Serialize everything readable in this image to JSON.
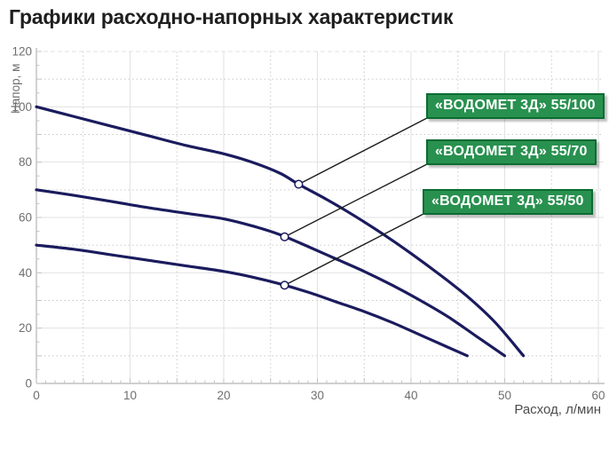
{
  "page": {
    "title": "Графики расходно-напорных характеристик"
  },
  "chart_data": {
    "type": "line",
    "title": "Графики расходно-напорных характеристик",
    "xlabel": "Расход, л/мин",
    "ylabel": "Напор, м",
    "xlim": [
      0,
      60
    ],
    "ylim": [
      0,
      120
    ],
    "x_major_ticks": [
      0,
      10,
      20,
      30,
      40,
      50,
      60
    ],
    "x_minor_step": 5,
    "y_major_ticks": [
      0,
      20,
      40,
      60,
      80,
      100,
      120
    ],
    "y_minor_step": 10,
    "grid": true,
    "legend_position": "callout-boxes-top-right",
    "annotation_box": {
      "bg": "#28914f",
      "border": "#0b6b33",
      "text_color": "#ffffff"
    },
    "series": [
      {
        "name": "«ВОДОМЕТ 3Д» 55/100",
        "color": "#1b1b5e",
        "points": [
          [
            0,
            100
          ],
          [
            4,
            96.5
          ],
          [
            8,
            93
          ],
          [
            12,
            89.5
          ],
          [
            16,
            86
          ],
          [
            20,
            83
          ],
          [
            23,
            80
          ],
          [
            26,
            76
          ],
          [
            28,
            72
          ],
          [
            31,
            66.5
          ],
          [
            34,
            60.5
          ],
          [
            37,
            54
          ],
          [
            40,
            47
          ],
          [
            43,
            39.5
          ],
          [
            46,
            31.5
          ],
          [
            49,
            22
          ],
          [
            52,
            10
          ]
        ],
        "callout_point": [
          28,
          72
        ]
      },
      {
        "name": "«ВОДОМЕТ 3Д» 55/70",
        "color": "#1b1b5e",
        "points": [
          [
            0,
            70
          ],
          [
            4,
            68
          ],
          [
            8,
            65.8
          ],
          [
            12,
            63.5
          ],
          [
            16,
            61.5
          ],
          [
            20,
            59.5
          ],
          [
            23,
            57
          ],
          [
            26,
            53.8
          ],
          [
            29,
            49.5
          ],
          [
            32,
            45
          ],
          [
            35,
            40.5
          ],
          [
            38,
            35.5
          ],
          [
            41,
            30
          ],
          [
            44,
            24
          ],
          [
            47,
            17
          ],
          [
            50,
            10
          ]
        ],
        "callout_point": [
          26.5,
          53
        ]
      },
      {
        "name": "«ВОДОМЕТ 3Д» 55/50",
        "color": "#1b1b5e",
        "points": [
          [
            0,
            50
          ],
          [
            4,
            48.5
          ],
          [
            8,
            46.5
          ],
          [
            12,
            44.5
          ],
          [
            16,
            42.5
          ],
          [
            20,
            40.5
          ],
          [
            23,
            38.5
          ],
          [
            26,
            36
          ],
          [
            29,
            33
          ],
          [
            32,
            29.5
          ],
          [
            35,
            26
          ],
          [
            38,
            22
          ],
          [
            41,
            17.5
          ],
          [
            44,
            13
          ],
          [
            46,
            10
          ]
        ],
        "callout_point": [
          26.5,
          35.5
        ]
      }
    ]
  }
}
